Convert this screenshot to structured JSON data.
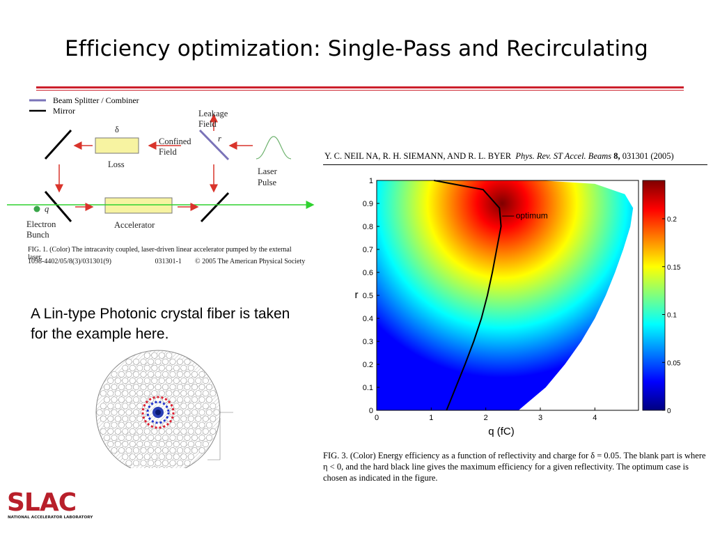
{
  "slide": {
    "title": "Efficiency optimization: Single-Pass and Recirculating",
    "body_text": "A Lin-type Photonic crystal fiber is taken for the example here."
  },
  "figure1": {
    "legend": [
      {
        "label": "Beam Splitter / Combiner",
        "color": "#7a73b8"
      },
      {
        "label": "Mirror",
        "color": "#000000"
      }
    ],
    "labels": {
      "delta": "δ",
      "loss": "Loss",
      "confined_field_1": "Confined",
      "confined_field_2": "Field",
      "leakage_field_1": "Leakage",
      "leakage_field_2": "Field",
      "r": "r",
      "laser_pulse_1": "Laser",
      "laser_pulse_2": "Pulse",
      "q": "q",
      "electron_bunch_1": "Electron",
      "electron_bunch_2": "Bunch",
      "accelerator": "Accelerator"
    },
    "caption": "FIG. 1. (Color) The intracavity coupled, laser-driven linear accelerator pumped by the external laser.",
    "meta_left": "1098-4402/05/8(3)/031301(9)",
    "meta_mid": "031301-1",
    "meta_right": "©  2005  The American Physical Society",
    "colors": {
      "arrow": "#d9342b",
      "box": "#f7f3a1",
      "beam": "#2fd22f",
      "dot": "#3aa64a"
    }
  },
  "reference": {
    "authors": "Y. C. NEIL NA, R. H. SIEMANN, AND R. L. BYER",
    "journal": "Phys. Rev. ST Accel. Beams",
    "volume": "8,",
    "article": "031301 (2005)"
  },
  "chart_data": {
    "type": "heatmap",
    "title": "",
    "xlabel": "q (fC)",
    "ylabel": "r",
    "xlim": [
      0,
      4.8
    ],
    "ylim": [
      0,
      1
    ],
    "x_ticks": [
      "0",
      "1",
      "2",
      "3",
      "4"
    ],
    "y_ticks": [
      "0",
      "0.1",
      "0.2",
      "0.3",
      "0.4",
      "0.5",
      "0.6",
      "0.7",
      "0.8",
      "0.9",
      "1"
    ],
    "colorbar": {
      "min": 0,
      "max": 0.24,
      "ticks": [
        "0",
        "0.05",
        "0.1",
        "0.15",
        "0.2"
      ]
    },
    "colormap": [
      "#00007f",
      "#0000ff",
      "#007fff",
      "#00ffff",
      "#7fff7f",
      "#ffff00",
      "#ff7f00",
      "#ff0000",
      "#7f0000"
    ],
    "peak": {
      "q": 2.3,
      "r": 0.9,
      "value": 0.24
    },
    "annotation": "optimum",
    "optimum_curve": [
      {
        "q": 1.28,
        "r": 0.0
      },
      {
        "q": 1.45,
        "r": 0.1
      },
      {
        "q": 1.62,
        "r": 0.2
      },
      {
        "q": 1.78,
        "r": 0.3
      },
      {
        "q": 1.92,
        "r": 0.4
      },
      {
        "q": 2.03,
        "r": 0.5
      },
      {
        "q": 2.12,
        "r": 0.6
      },
      {
        "q": 2.2,
        "r": 0.7
      },
      {
        "q": 2.28,
        "r": 0.8
      },
      {
        "q": 2.25,
        "r": 0.88
      },
      {
        "q": 1.95,
        "r": 0.96
      },
      {
        "q": 1.05,
        "r": 1.0
      }
    ],
    "boundary": [
      {
        "q": 2.6,
        "r": 0.0
      },
      {
        "q": 3.1,
        "r": 0.1
      },
      {
        "q": 3.45,
        "r": 0.2
      },
      {
        "q": 3.75,
        "r": 0.3
      },
      {
        "q": 4.0,
        "r": 0.4
      },
      {
        "q": 4.2,
        "r": 0.5
      },
      {
        "q": 4.37,
        "r": 0.6
      },
      {
        "q": 4.52,
        "r": 0.7
      },
      {
        "q": 4.65,
        "r": 0.8
      },
      {
        "q": 4.7,
        "r": 0.88
      },
      {
        "q": 4.55,
        "r": 0.94
      },
      {
        "q": 4.0,
        "r": 0.985
      },
      {
        "q": 3.0,
        "r": 1.0
      },
      {
        "q": 0,
        "r": 1.0
      }
    ]
  },
  "figure3": {
    "caption": "FIG. 3. (Color) Energy efficiency as a function of reflectivity and charge for δ = 0.05. The blank part is where η < 0, and the hard black line gives the maximum efficiency for a given reflectivity. The optimum case is chosen as indicated in the figure."
  },
  "logo": {
    "name": "SLAC",
    "tagline": "NATIONAL ACCELERATOR LABORATORY",
    "color": "#b81f2a"
  }
}
